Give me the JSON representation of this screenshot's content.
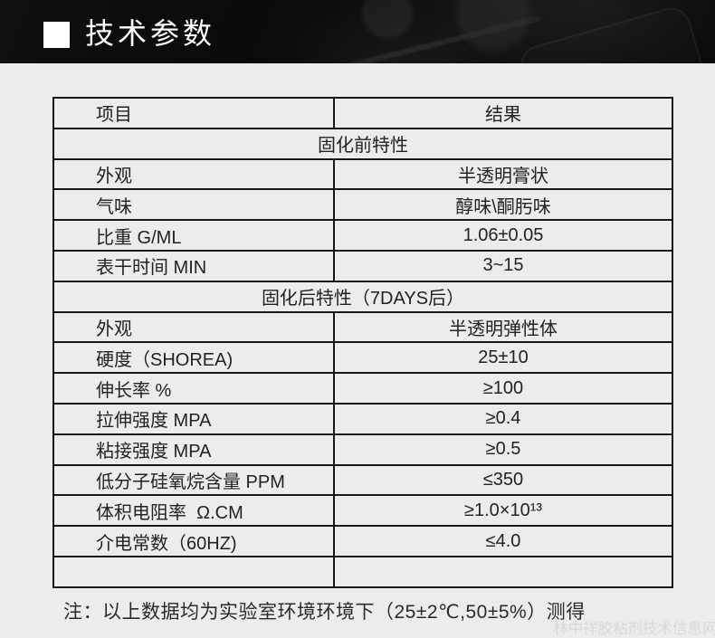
{
  "header": {
    "title": "技术参数"
  },
  "colors": {
    "header_bg": "#0b0b0b",
    "page_bg": "#ececec",
    "table_border": "#161616",
    "cell_text": "#222222",
    "title_text": "#ffffff",
    "watermark_text": "#d9d9d9"
  },
  "table": {
    "columns": [
      "项目",
      "结果"
    ],
    "rows": [
      {
        "type": "section",
        "label": "固化前特性"
      },
      {
        "type": "data",
        "item": "外观",
        "result": "半透明膏状"
      },
      {
        "type": "data",
        "item": "气味",
        "result": "醇味\\酮肟味"
      },
      {
        "type": "data",
        "item": "比重 G/ML",
        "result": "1.06±0.05"
      },
      {
        "type": "data",
        "item": "表干时间 MIN",
        "result": "3~15"
      },
      {
        "type": "section",
        "label": "固化后特性（7DAYS后）"
      },
      {
        "type": "data",
        "item": "外观",
        "result": "半透明弹性体"
      },
      {
        "type": "data",
        "item": "硬度（SHOREA)",
        "result": "25±10"
      },
      {
        "type": "data",
        "item": "伸长率 %",
        "result": "≥100"
      },
      {
        "type": "data",
        "item": "拉伸强度 MPA",
        "result": "≥0.4"
      },
      {
        "type": "data",
        "item": "粘接强度 MPA",
        "result": "≥0.5"
      },
      {
        "type": "data",
        "item": "低分子硅氧烷含量 PPM",
        "result": "≤350"
      },
      {
        "type": "data",
        "item": "体积电阻率  Ω.CM",
        "result": "≥1.0×10¹³"
      },
      {
        "type": "data",
        "item": "介电常数（60HZ)",
        "result": "≤4.0"
      },
      {
        "type": "data",
        "item": "",
        "result": ""
      }
    ]
  },
  "note": "注：以上数据均为实验室环境环境下（25±2℃,50±5%）测得",
  "watermark": "林中祥胶粘剂技术信息网"
}
